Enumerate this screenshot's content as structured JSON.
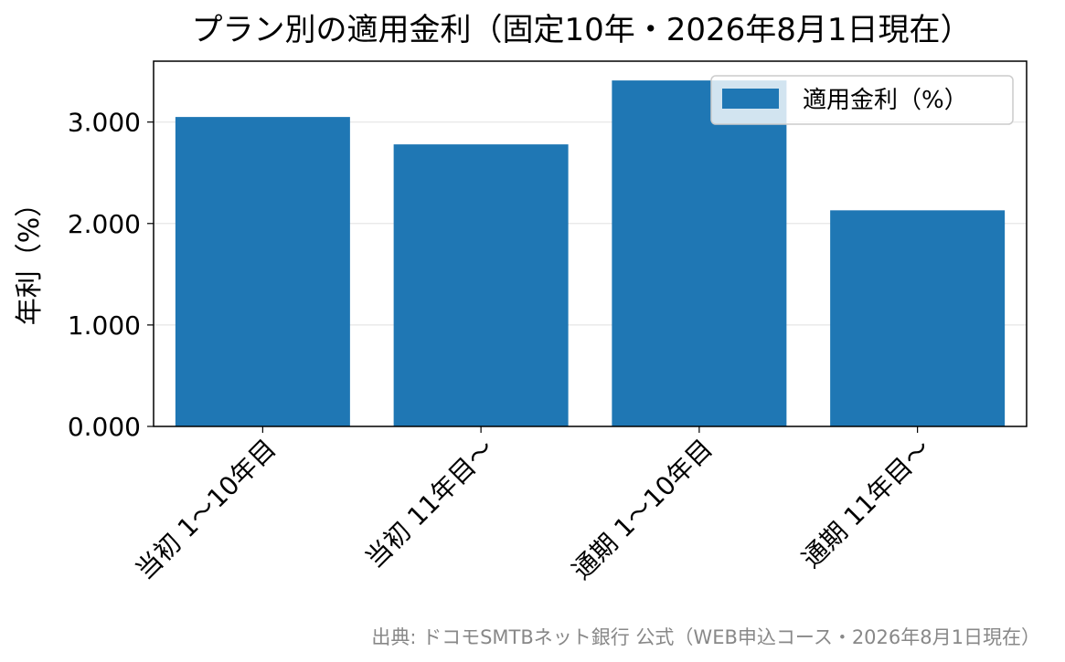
{
  "chart_data": {
    "type": "bar",
    "title": "プラン別の適用金利（固定10年・2026年8月1日現在）",
    "ylabel": "年利（%）",
    "xlabel": "",
    "categories": [
      "当初 1〜10年目",
      "当初 11年目〜",
      "通期 1〜10年目",
      "通期 11年目〜"
    ],
    "series": [
      {
        "name": "適用金利（%）",
        "values": [
          3.05,
          2.78,
          3.41,
          2.13
        ],
        "color": "#1f77b4"
      }
    ],
    "ylim": [
      0,
      3.6
    ],
    "yticks": [
      0,
      1,
      2,
      3
    ],
    "ytick_labels": [
      "0.000",
      "1.000",
      "2.000",
      "3.000"
    ],
    "grid": "horizontal",
    "legend_position": "top-right"
  },
  "source_note": "出典: ドコモSMTBネット銀行 公式（WEB申込コース・2026年8月1日現在）"
}
